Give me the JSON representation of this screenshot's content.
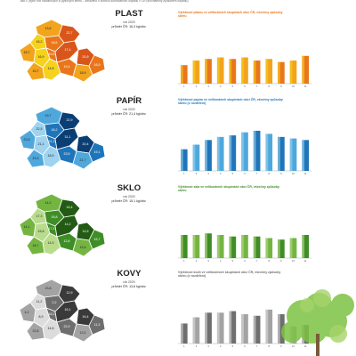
{
  "intro_text": "Tato č. jejich mix nádobových či pytlových sběrů – seřazeno s tvorbou komunálních odpadů v ČR (srovnatelný způsobem odpadu).",
  "colors": {
    "plast": [
      "#f6d21e",
      "#f2a41d",
      "#e9761c",
      "#d9561a"
    ],
    "papir": [
      "#9fd3ef",
      "#4fa8dc",
      "#1f75b9",
      "#0b3e73"
    ],
    "sklo": [
      "#b9dc8c",
      "#74b542",
      "#3f8d26",
      "#235a14"
    ],
    "kovy": [
      "#dcdcdc",
      "#a3a3a3",
      "#6e6e6e",
      "#3a3a3a"
    ]
  },
  "materials": [
    {
      "key": "plast",
      "title": "PLAST",
      "year": "rok 2020",
      "avg": "průměr ČR: 16,3 kg/obv.",
      "chart_title": "Výtěžnost plastu ve velikostních skupinách obcí ČR, všechny způsoby sběru",
      "region_values": [
        "13,6",
        "16,2",
        "18,6",
        "22,7",
        "15,7",
        "16,9",
        "19,5",
        "17,4",
        "15,7",
        "14,8",
        "19,4",
        "20,9",
        "18,9",
        "16,9"
      ]
    },
    {
      "key": "papir",
      "title": "PAPÍR",
      "year": "rok 2020",
      "avg": "průměr ČR: 21,4 kg/obv.",
      "chart_title": "Výtěžnost papíru ve velikostních skupinách obcí ČR, všechny způsoby sběru (v rozdělení)",
      "region_values": [
        "19,7",
        "22,5",
        "18,2",
        "22,9",
        "22,6",
        "21,1",
        "21,3",
        "31,1",
        "23,3",
        "18,9",
        "23,5",
        "20,4",
        "21,7",
        "19,1"
      ]
    },
    {
      "key": "sklo",
      "title": "SKLO",
      "year": "rok 2020",
      "avg": "průměr ČR: 15,1 kg/obv.",
      "chart_title": "Výtěžnost skla ve velikostních skupinách obcí ČR, všechny způsoby sběru",
      "region_values": [
        "14,2",
        "17,3",
        "18,8",
        "16,4",
        "14,1",
        "15,8",
        "17,4",
        "14,2",
        "16,7",
        "14,3",
        "12,8",
        "14,5",
        "13,4",
        "15,7"
      ]
    },
    {
      "key": "kovy",
      "title": "KOVY",
      "year": "rok 2020",
      "avg": "průměr ČR: 13,6 kg/obv.",
      "chart_title": "Výtěžnost kovů ve velikostních skupinách obcí ČR, všechny způsoby sběru (v rozdělení)",
      "region_values": [
        "13,8",
        "11,2",
        "2,2",
        "12,9",
        "4,2",
        "8,9",
        "18,2",
        "16,1",
        "22,6",
        "14,6",
        "22,9",
        "16,4",
        "13,2",
        "11,3"
      ]
    }
  ],
  "chart_data": [
    {
      "type": "bar",
      "title": "Výtěžnost plastu ve velikostních skupinách obcí ČR, všechny způsoby sběru",
      "categories": [
        "1",
        "2",
        "3",
        "4",
        "5",
        "6",
        "7",
        "8",
        "9",
        "10",
        "11"
      ],
      "series": [
        {
          "values": [
            12,
            15,
            16,
            17,
            16,
            17,
            15,
            16,
            14,
            15,
            18
          ]
        }
      ],
      "style": "gradient"
    },
    {
      "type": "bar",
      "title": "Výtěžnost papíru ve velikostních skupinách obcí ČR, všechny způsoby sběru (v rozdělení)",
      "categories": [
        "1",
        "2",
        "3",
        "4",
        "5",
        "6",
        "7",
        "8",
        "9",
        "10",
        "11"
      ],
      "series": [
        {
          "values": [
            14,
            17,
            20,
            22,
            23,
            25,
            26,
            24,
            22,
            21,
            20
          ]
        }
      ],
      "style": "gradient"
    },
    {
      "type": "bar",
      "title": "Výtěžnost skla ve velikostních skupinách obcí ČR, všechny způsoby sběru",
      "categories": [
        "1",
        "2",
        "3",
        "4",
        "5",
        "6",
        "7",
        "8",
        "9",
        "10",
        "11"
      ],
      "series": [
        {
          "values": [
            15,
            15,
            16,
            15,
            14,
            15,
            14,
            13,
            12,
            13,
            15
          ]
        }
      ],
      "style": "gradient"
    },
    {
      "type": "bar",
      "title": "Výtěžnost kovů ve velikostních skupinách obcí ČR, všechny způsoby sběru (v rozdělení)",
      "categories": [
        "1",
        "2",
        "3",
        "4",
        "5",
        "6",
        "7",
        "8",
        "9",
        "10",
        "11"
      ],
      "series": [
        {
          "values": [
            13,
            17,
            20,
            20,
            21,
            19,
            18,
            22,
            19,
            11,
            12
          ]
        }
      ],
      "style": "gradient"
    }
  ]
}
